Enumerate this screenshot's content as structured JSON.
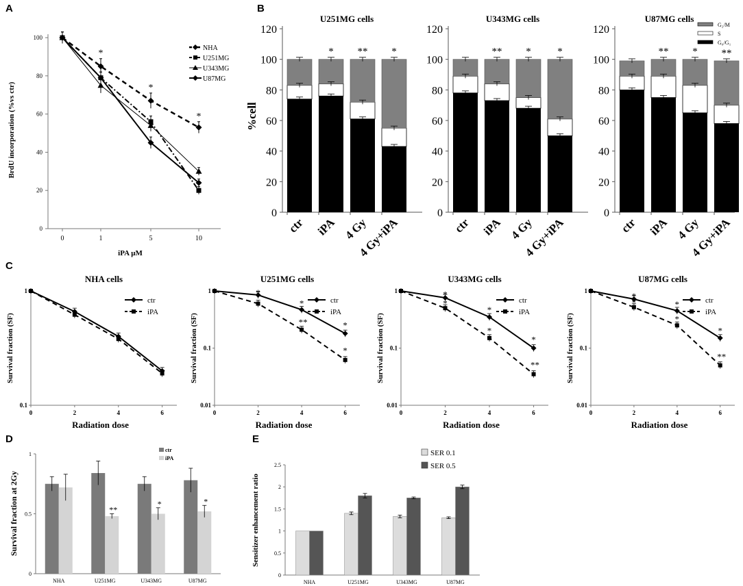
{
  "panel_labels": [
    "A",
    "B",
    "C",
    "D",
    "E"
  ],
  "chart_data": [
    {
      "panel": "A",
      "type": "line",
      "xlabel": "iPA μM",
      "ylabel": "BrdU incorporation (%vs ctr)",
      "categories": [
        "0",
        "1",
        "5",
        "10"
      ],
      "ylim": [
        0,
        100
      ],
      "yticks": [
        "0",
        "20",
        "40",
        "60",
        "80",
        "100"
      ],
      "series": [
        {
          "name": "NHA",
          "values": [
            100,
            85,
            67,
            53
          ],
          "err": [
            3,
            4,
            4,
            3
          ],
          "style": "dashed",
          "marker": "diamond"
        },
        {
          "name": "U251MG",
          "values": [
            100,
            79,
            56,
            20
          ],
          "err": [
            3,
            3,
            3,
            2
          ],
          "style": "dashdot",
          "marker": "square"
        },
        {
          "name": "U343MG",
          "values": [
            100,
            75,
            54,
            30
          ],
          "err": [
            3,
            4,
            3,
            2
          ],
          "style": "thin",
          "marker": "triangle"
        },
        {
          "name": "U87MG",
          "values": [
            100,
            79,
            45,
            24
          ],
          "err": [
            3,
            3,
            3,
            2
          ],
          "style": "solid",
          "marker": "diamond"
        }
      ],
      "annotations": [
        {
          "x": "1",
          "text": "*"
        },
        {
          "x": "5",
          "text": "*"
        },
        {
          "x": "10",
          "text": "*"
        }
      ]
    },
    {
      "panel": "B",
      "type": "bar",
      "stacked": true,
      "ylabel": "%cell",
      "yticks": [
        "0",
        "20",
        "40",
        "60",
        "80",
        "100",
        "120"
      ],
      "ylim": [
        0,
        120
      ],
      "legend": [
        "G₂/M",
        "S",
        "G₀/G₁"
      ],
      "subplots": [
        {
          "title": "U251MG cells",
          "categories": [
            "ctr",
            "iPA",
            "4 Gy",
            "4 Gy+iPA"
          ],
          "G0G1": [
            74,
            76,
            61,
            43
          ],
          "S": [
            9,
            8,
            11,
            12
          ],
          "G2M": [
            17,
            16,
            28,
            45
          ],
          "stars": [
            "",
            "*",
            "**",
            "*"
          ]
        },
        {
          "title": "U343MG cells",
          "categories": [
            "ctr",
            "iPA",
            "4 Gy",
            "4 Gy+iPA"
          ],
          "G0G1": [
            78,
            73,
            68,
            50
          ],
          "S": [
            11,
            11,
            7,
            11
          ],
          "G2M": [
            11,
            16,
            25,
            39
          ],
          "stars": [
            "",
            "**",
            "*",
            "*"
          ]
        },
        {
          "title": "U87MG cells",
          "categories": [
            "ctr",
            "iPA",
            "4 Gy",
            "4 Gy+iPA"
          ],
          "G0G1": [
            80,
            75,
            65,
            58
          ],
          "S": [
            9,
            14,
            18,
            12
          ],
          "G2M": [
            10,
            11,
            17,
            29
          ],
          "stars": [
            "",
            "**",
            "*",
            "**"
          ]
        }
      ]
    },
    {
      "panel": "C",
      "type": "line",
      "yscale": "log",
      "xlabel": "Radiation dose",
      "ylabel": "Survival fraction (SF)",
      "x": [
        0,
        2,
        4,
        6
      ],
      "xticks": [
        "0",
        "2",
        "4",
        "6"
      ],
      "subplots": [
        {
          "title": "NHA  cells",
          "ylim": [
            0.1,
            1
          ],
          "yticks": [
            "0.1",
            "1"
          ],
          "series": [
            {
              "name": "ctr",
              "values": [
                1,
                0.66,
                0.4,
                0.2
              ]
            },
            {
              "name": "iPA",
              "values": [
                1,
                0.62,
                0.38,
                0.19
              ]
            }
          ],
          "stars": []
        },
        {
          "title": "U251MG  cells",
          "ylim": [
            0.01,
            1
          ],
          "yticks": [
            "0.01",
            "0.1",
            "1"
          ],
          "series": [
            {
              "name": "ctr",
              "values": [
                1,
                0.85,
                0.47,
                0.18
              ]
            },
            {
              "name": "iPA",
              "values": [
                1,
                0.6,
                0.21,
                0.062
              ]
            }
          ],
          "stars": [
            {
              "x": 2,
              "v": 0.92,
              "t": "*"
            },
            {
              "x": 4,
              "v": 0.6,
              "t": "*"
            },
            {
              "x": 4,
              "v": 0.28,
              "t": "**"
            },
            {
              "x": 6,
              "v": 0.25,
              "t": "*"
            },
            {
              "x": 6,
              "v": 0.09,
              "t": "*"
            }
          ]
        },
        {
          "title": "U343MG  cells",
          "ylim": [
            0.01,
            1
          ],
          "yticks": [
            "0.01",
            "0.1",
            "1"
          ],
          "series": [
            {
              "name": "ctr",
              "values": [
                1,
                0.76,
                0.35,
                0.1
              ]
            },
            {
              "name": "iPA",
              "values": [
                1,
                0.5,
                0.15,
                0.035
              ]
            }
          ],
          "stars": [
            {
              "x": 2,
              "v": 0.86,
              "t": "*"
            },
            {
              "x": 2,
              "v": 0.6,
              "t": "*"
            },
            {
              "x": 4,
              "v": 0.46,
              "t": "*"
            },
            {
              "x": 4,
              "v": 0.2,
              "t": "*"
            },
            {
              "x": 6,
              "v": 0.14,
              "t": "*"
            },
            {
              "x": 6,
              "v": 0.05,
              "t": "**"
            }
          ]
        },
        {
          "title": "U87MG  cells",
          "ylim": [
            0.01,
            1
          ],
          "yticks": [
            "0.01",
            "0.1",
            "1"
          ],
          "series": [
            {
              "name": "ctr",
              "values": [
                1,
                0.72,
                0.45,
                0.15
              ]
            },
            {
              "name": "iPA",
              "values": [
                1,
                0.52,
                0.25,
                0.05
              ]
            }
          ],
          "stars": [
            {
              "x": 2,
              "v": 0.8,
              "t": "*"
            },
            {
              "x": 2,
              "v": 0.62,
              "t": "*"
            },
            {
              "x": 4,
              "v": 0.58,
              "t": "*"
            },
            {
              "x": 4,
              "v": 0.32,
              "t": "*"
            },
            {
              "x": 6,
              "v": 0.2,
              "t": "*"
            },
            {
              "x": 6,
              "v": 0.07,
              "t": "**"
            }
          ]
        }
      ]
    },
    {
      "panel": "D",
      "type": "bar",
      "ylabel": "Survival fraction at 2Gy",
      "categories": [
        "NHA",
        "U251MG",
        "U343MG",
        "U87MG"
      ],
      "ylim": [
        0,
        1
      ],
      "yticks": [
        "0",
        "0.5",
        "1"
      ],
      "series": [
        {
          "name": "ctr",
          "values": [
            0.75,
            0.84,
            0.75,
            0.78
          ],
          "err": [
            0.06,
            0.1,
            0.06,
            0.1
          ],
          "color": "#7a7a7a"
        },
        {
          "name": "iPA",
          "values": [
            0.72,
            0.48,
            0.5,
            0.52
          ],
          "err": [
            0.11,
            0.02,
            0.05,
            0.05
          ],
          "color": "#d4d4d4"
        }
      ],
      "stars": [
        "",
        "**",
        "*",
        "*"
      ]
    },
    {
      "panel": "E",
      "type": "bar",
      "ylabel": "Sensitizer enhancement ratio",
      "categories": [
        "NHA",
        "U251MG",
        "U343MG",
        "U87MG"
      ],
      "ylim": [
        0,
        2.5
      ],
      "yticks": [
        "0",
        "0.5",
        "1",
        "1.5",
        "2",
        "2.5"
      ],
      "series": [
        {
          "name": "SER 0.1",
          "values": [
            1,
            1.4,
            1.33,
            1.3
          ],
          "err": [
            0,
            0.03,
            0.03,
            0.02
          ],
          "color": "#dcdcdc"
        },
        {
          "name": "SER 0.5",
          "values": [
            1,
            1.8,
            1.75,
            2
          ],
          "err": [
            0,
            0.05,
            0.02,
            0.04
          ],
          "color": "#555555"
        }
      ]
    }
  ]
}
